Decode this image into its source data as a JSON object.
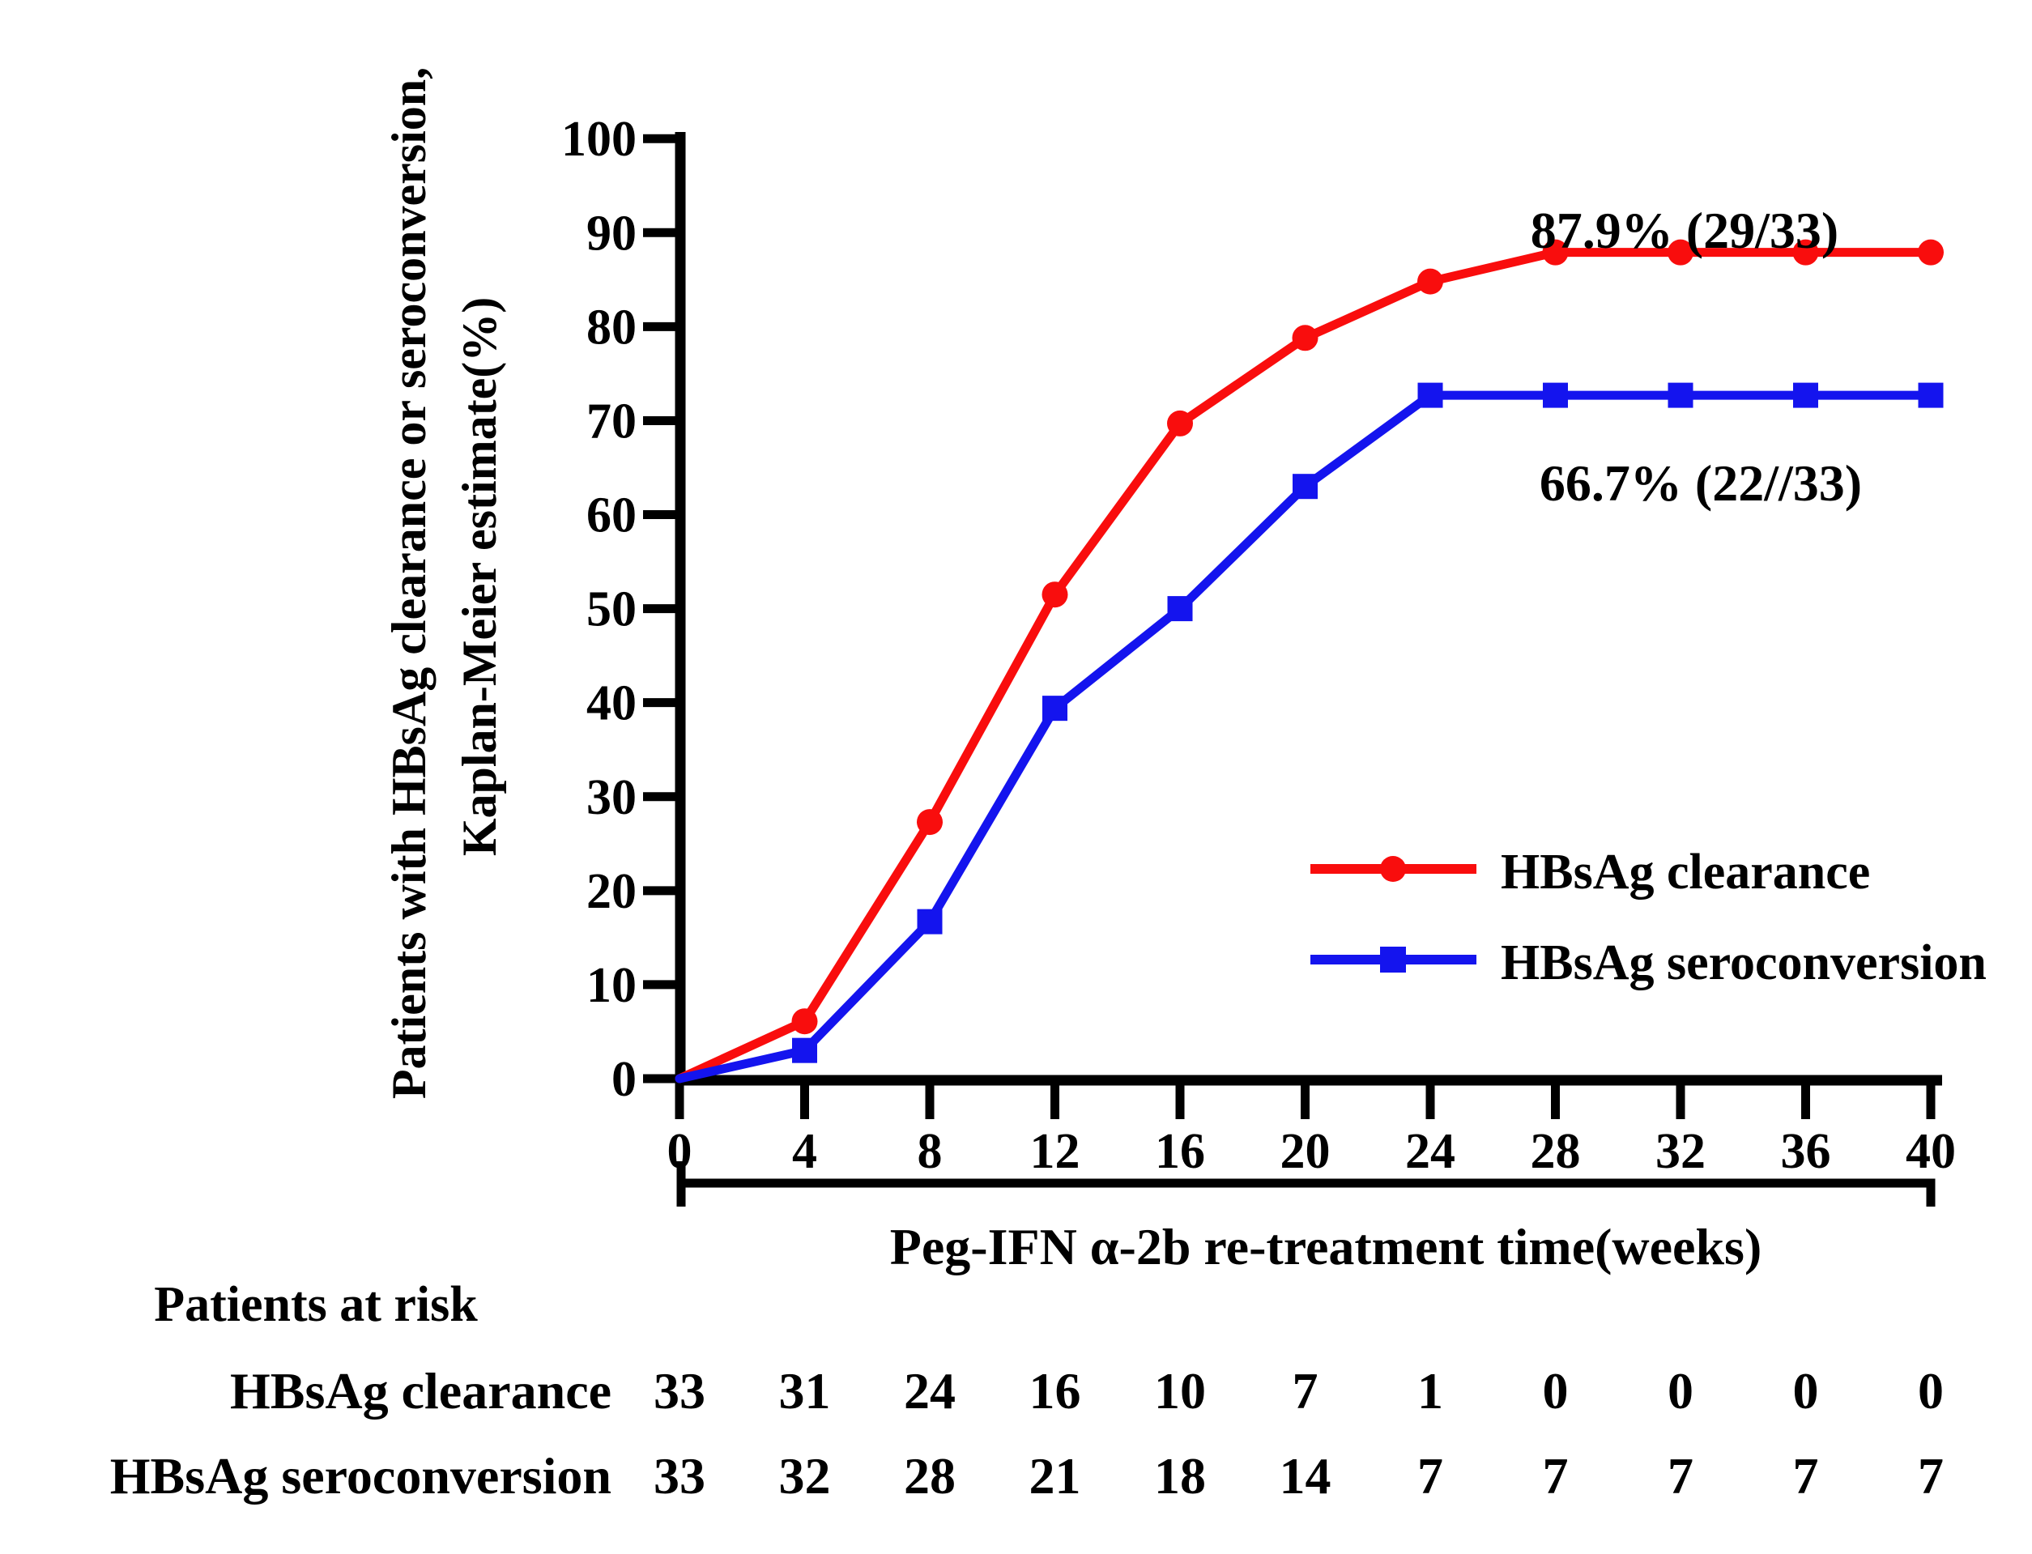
{
  "chart_data": {
    "type": "line",
    "title": "",
    "xlabel": "Peg-IFN α-2b re-treatment time(weeks)",
    "ylabel_line1": "Patients with HBsAg clearance or seroconversion,",
    "ylabel_line2": "Kaplan-Meier estimate(%)",
    "x": [
      0,
      4,
      8,
      12,
      16,
      20,
      24,
      28,
      32,
      36,
      40
    ],
    "xticks": [
      0,
      4,
      8,
      12,
      16,
      20,
      24,
      28,
      32,
      36,
      40
    ],
    "yticks": [
      0,
      10,
      20,
      30,
      40,
      50,
      60,
      70,
      80,
      90,
      100
    ],
    "xlim": [
      0,
      40
    ],
    "ylim": [
      0,
      100
    ],
    "grid": false,
    "legend_position": "inside-right",
    "series": [
      {
        "name": "HBsAg clearance",
        "color": "#f90d0d",
        "marker": "circle",
        "values": [
          0,
          6.1,
          27.3,
          51.5,
          69.7,
          78.8,
          84.8,
          87.9,
          87.9,
          87.9,
          87.9
        ],
        "annotation": "87.9% (29/33)"
      },
      {
        "name": "HBsAg seroconversion",
        "color": "#1414ee",
        "marker": "square",
        "values": [
          0,
          3.0,
          16.7,
          39.4,
          50.0,
          63.0,
          72.7,
          72.7,
          72.7,
          72.7,
          72.7
        ],
        "annotation": "66.7% (22//33)"
      }
    ]
  },
  "at_risk": {
    "title": "Patients at risk",
    "rows": [
      {
        "label": "HBsAg clearance",
        "values": [
          33,
          31,
          24,
          16,
          10,
          7,
          1,
          0,
          0,
          0,
          0
        ]
      },
      {
        "label": "HBsAg seroconversion",
        "values": [
          33,
          32,
          28,
          21,
          18,
          14,
          7,
          7,
          7,
          7,
          7
        ]
      }
    ]
  }
}
